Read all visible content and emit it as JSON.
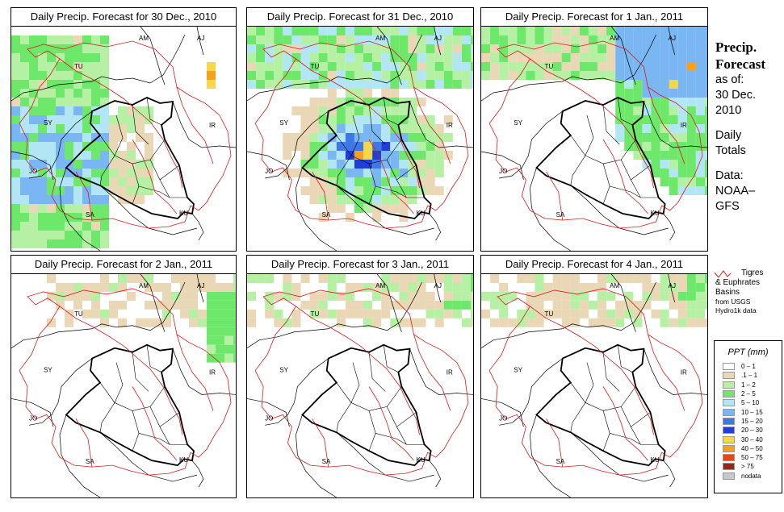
{
  "panels": [
    {
      "title": "Daily Precip. Forecast for  30 Dec., 2010",
      "intensity": "med",
      "region": "west"
    },
    {
      "title": "Daily Precip. Forecast for  31 Dec., 2010",
      "intensity": "high",
      "region": "north-central"
    },
    {
      "title": "Daily Precip. Forecast for  1 Jan., 2011",
      "intensity": "med",
      "region": "north-east"
    },
    {
      "title": "Daily Precip. Forecast for  2 Jan., 2011",
      "intensity": "low",
      "region": "north-east-edge"
    },
    {
      "title": "Daily Precip. Forecast for  3 Jan., 2011",
      "intensity": "low",
      "region": "north"
    },
    {
      "title": "Daily Precip. Forecast for  4 Jan., 2011",
      "intensity": "low",
      "region": "north"
    }
  ],
  "country_labels": [
    "AM",
    "AJ",
    "TU",
    "SY",
    "IR",
    "JO",
    "SA",
    "KU"
  ],
  "sidebar": {
    "heading_line1": "Precip.",
    "heading_line2": "Forecast",
    "asof_label": "as of:",
    "asof_date1": "30 Dec.",
    "asof_date2": "2010",
    "totals1": "Daily",
    "totals2": "Totals",
    "data1": "Data:",
    "data2": "NOAA–",
    "data3": "GFS"
  },
  "basin_note": {
    "line1": "Tigres",
    "line2": "& Euphrates",
    "line3": "Basins",
    "line4": "from USGS",
    "line5": "Hydro1k data"
  },
  "legend": {
    "title": "PPT (mm)",
    "items": [
      {
        "label": "0 – 1",
        "color": "#ffffff"
      },
      {
        "label": ".1 – 1",
        "color": "#e9d7b5"
      },
      {
        "label": "1 – 2",
        "color": "#b5f0a5"
      },
      {
        "label": "2 – 5",
        "color": "#6ee86a"
      },
      {
        "label": "5 – 10",
        "color": "#b3e6f5"
      },
      {
        "label": "10 – 15",
        "color": "#7ab7f2"
      },
      {
        "label": "15 – 20",
        "color": "#3d78e6"
      },
      {
        "label": "20 – 30",
        "color": "#1f3fd6"
      },
      {
        "label": "30 – 40",
        "color": "#f5d74a"
      },
      {
        "label": "40 – 50",
        "color": "#f5a11a"
      },
      {
        "label": "50 – 75",
        "color": "#e8451a"
      },
      {
        "label": "> 75",
        "color": "#a0221a"
      },
      {
        "label": "nodata",
        "color": "#c8c8c8"
      }
    ]
  }
}
